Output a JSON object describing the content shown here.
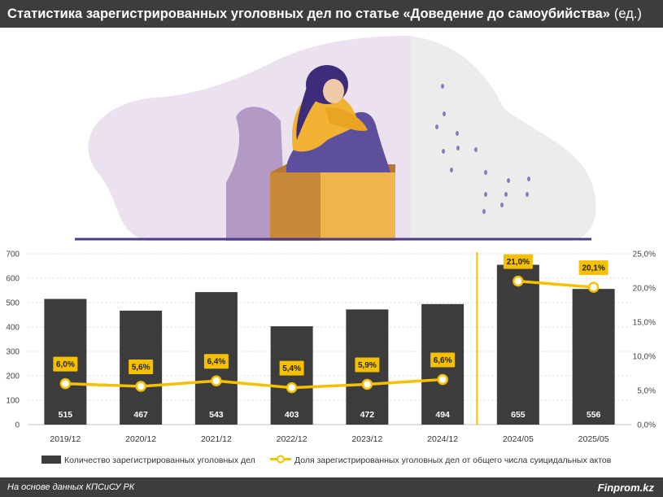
{
  "header": {
    "title": "Статистика зарегистрированных уголовных дел по статье «Доведение до самоубийства»",
    "unit": "(ед.)"
  },
  "footer": {
    "source": "На основе данных КПСиСУ РК",
    "brand": "Finprom.kz"
  },
  "colors": {
    "header_bg": "#3d3d3d",
    "bar": "#3c3c3c",
    "line": "#f5c000",
    "label_bg": "#f5c000",
    "divider": "#f5c000"
  },
  "chart_data": {
    "type": "bar",
    "categories": [
      "2019/12",
      "2020/12",
      "2021/12",
      "2022/12",
      "2023/12",
      "2024/12",
      "2024/05",
      "2025/05"
    ],
    "series": [
      {
        "name": "Количество зарегистрированных уголовных дел",
        "type": "bar",
        "axis": "left",
        "values": [
          515,
          467,
          543,
          403,
          472,
          494,
          655,
          556
        ],
        "labels": [
          "515",
          "467",
          "543",
          "403",
          "472",
          "494",
          "655",
          "556"
        ]
      },
      {
        "name": "Доля зарегистрированных уголовных дел от общего числа суицидальных актов",
        "type": "line",
        "axis": "right",
        "values": [
          6.0,
          5.6,
          6.4,
          5.4,
          5.9,
          6.6,
          21.0,
          20.1
        ],
        "labels": [
          "6,0%",
          "5,6%",
          "6,4%",
          "5,4%",
          "5,9%",
          "6,6%",
          "21,0%",
          "20,1%"
        ],
        "line_segments": [
          [
            0,
            5
          ],
          [
            6,
            7
          ]
        ]
      }
    ],
    "left_axis": {
      "ylim": [
        0,
        700
      ],
      "ticks": [
        "0",
        "100",
        "200",
        "300",
        "400",
        "500",
        "600",
        "700"
      ]
    },
    "right_axis": {
      "ylim": [
        0,
        25
      ],
      "ticks": [
        "0,0%",
        "5,0%",
        "10,0%",
        "15,0%",
        "20,0%",
        "25,0%"
      ]
    },
    "divider_after_index": 5,
    "grid": true,
    "legend_position": "bottom"
  }
}
